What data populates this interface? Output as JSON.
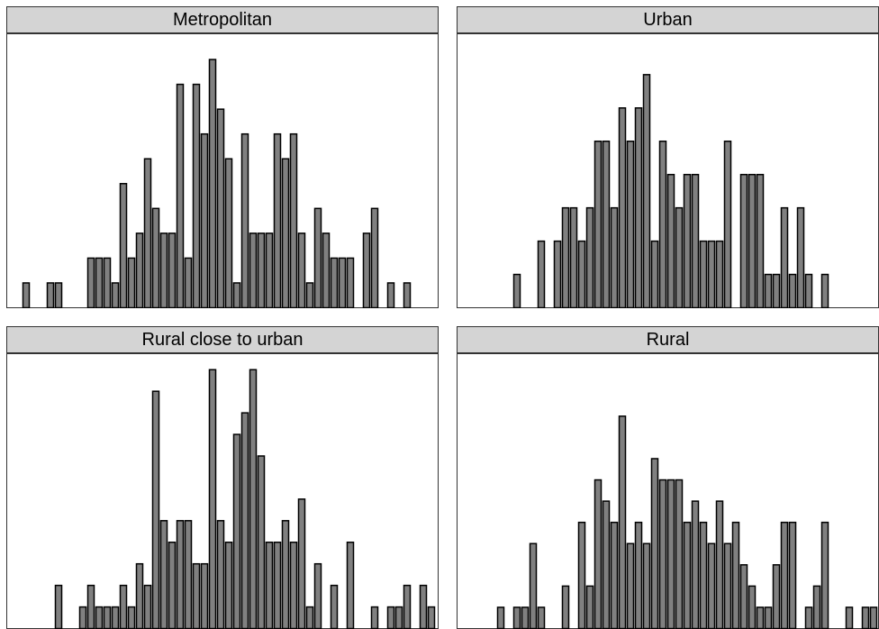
{
  "chart_data": [
    {
      "type": "bar",
      "title": "Metropolitan",
      "values": [
        1,
        0,
        0,
        1,
        1,
        0,
        0,
        0,
        2,
        2,
        2,
        1,
        5,
        2,
        3,
        6,
        4,
        3,
        3,
        9,
        2,
        9,
        7,
        10,
        8,
        6,
        1,
        7,
        3,
        3,
        3,
        7,
        6,
        7,
        3,
        1,
        4,
        3,
        2,
        2,
        2,
        0,
        3,
        4,
        0,
        1,
        0,
        1,
        0,
        0,
        0,
        1
      ],
      "ylim": [
        0,
        11
      ]
    },
    {
      "type": "bar",
      "title": "Urban",
      "values": [
        0,
        0,
        0,
        0,
        0,
        1,
        0,
        0,
        2,
        0,
        2,
        3,
        3,
        2,
        3,
        5,
        5,
        3,
        6,
        5,
        6,
        7,
        2,
        5,
        4,
        3,
        4,
        4,
        2,
        2,
        2,
        5,
        0,
        4,
        4,
        4,
        1,
        1,
        3,
        1,
        3,
        1,
        0,
        1
      ],
      "ylim": [
        0,
        8.2
      ]
    },
    {
      "type": "bar",
      "title": "Rural close to urban",
      "values": [
        0,
        0,
        0,
        0,
        2,
        0,
        0,
        1,
        2,
        1,
        1,
        1,
        2,
        1,
        3,
        2,
        11,
        5,
        4,
        5,
        5,
        3,
        3,
        12,
        5,
        4,
        9,
        10,
        12,
        8,
        4,
        4,
        5,
        4,
        6,
        1,
        3,
        0,
        2,
        0,
        4,
        0,
        0,
        1,
        0,
        1,
        1,
        2,
        0,
        2,
        1,
        1,
        0,
        1
      ],
      "ylim": [
        0,
        12.7
      ]
    },
    {
      "type": "bar",
      "title": "Rural",
      "values": [
        0,
        0,
        0,
        1,
        0,
        1,
        1,
        4,
        1,
        0,
        0,
        2,
        0,
        5,
        2,
        7,
        6,
        5,
        10,
        4,
        5,
        4,
        8,
        7,
        7,
        7,
        5,
        6,
        5,
        4,
        6,
        4,
        5,
        3,
        2,
        1,
        1,
        3,
        5,
        5,
        0,
        1,
        2,
        5,
        0,
        0,
        1,
        0,
        1,
        1,
        0,
        1,
        0,
        1,
        0,
        0,
        1
      ],
      "ylim": [
        0,
        12.9
      ]
    }
  ]
}
